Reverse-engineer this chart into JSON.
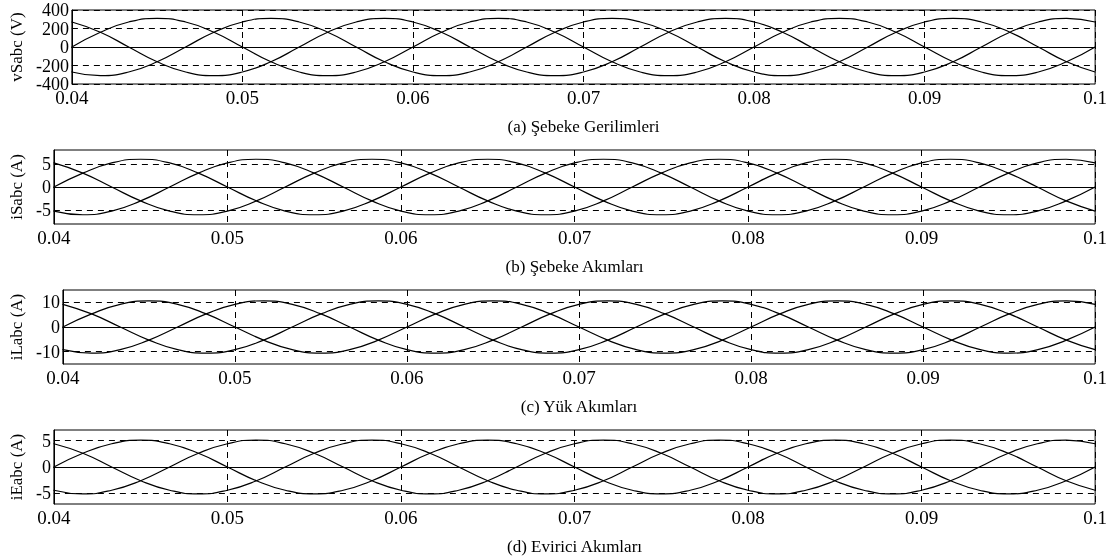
{
  "chart_data": [
    {
      "type": "line",
      "xlabel": "(a) Şebeke Gerilimleri",
      "ylabel": "vSabc (V)",
      "xlim": [
        0.04,
        0.1
      ],
      "xticks": [
        0.04,
        0.05,
        0.06,
        0.07,
        0.08,
        0.09,
        0.1
      ],
      "ylim": [
        -400,
        400
      ],
      "yticks": [
        -400,
        -200,
        0,
        200,
        400
      ],
      "grid": true,
      "marker": "none",
      "x": [
        0.04,
        0.04167,
        0.04333,
        0.045,
        0.04667,
        0.04833,
        0.05,
        0.05167,
        0.05333,
        0.055,
        0.05667,
        0.05833,
        0.06,
        0.06167,
        0.06333,
        0.065,
        0.06667,
        0.06833,
        0.07,
        0.07167,
        0.07333,
        0.075,
        0.07667,
        0.07833,
        0.08,
        0.08167,
        0.08333,
        0.085,
        0.08667,
        0.08833,
        0.09,
        0.09167,
        0.09333,
        0.095,
        0.09667,
        0.09833,
        0.1
      ],
      "series": [
        {
          "color": "#000000",
          "values": [
            0,
            160,
            270,
            310,
            270,
            160,
            0,
            -160,
            -270,
            -310,
            -270,
            -160,
            0,
            160,
            270,
            310,
            270,
            160,
            0,
            -160,
            -270,
            -310,
            -270,
            -160,
            0,
            160,
            270,
            310,
            270,
            160,
            0,
            -160,
            -270,
            -310,
            -270,
            -160,
            0
          ]
        },
        {
          "color": "#000000",
          "values": [
            -270,
            -310,
            -270,
            -160,
            0,
            160,
            270,
            310,
            270,
            160,
            0,
            -160,
            -270,
            -310,
            -270,
            -160,
            0,
            160,
            270,
            310,
            270,
            160,
            0,
            -160,
            -270,
            -310,
            -270,
            -160,
            0,
            160,
            270,
            310,
            270,
            160,
            0,
            -160,
            -270
          ]
        },
        {
          "color": "#000000",
          "values": [
            270,
            160,
            0,
            -160,
            -270,
            -310,
            -270,
            -160,
            0,
            160,
            270,
            310,
            270,
            160,
            0,
            -160,
            -270,
            -310,
            -270,
            -160,
            0,
            160,
            270,
            310,
            270,
            160,
            0,
            -160,
            -270,
            -310,
            -270,
            -160,
            0,
            160,
            270,
            310,
            270
          ]
        }
      ]
    },
    {
      "type": "line",
      "xlabel": "(b) Şebeke Akımları",
      "ylabel": "iSabc (A)",
      "xlim": [
        0.04,
        0.1
      ],
      "xticks": [
        0.04,
        0.05,
        0.06,
        0.07,
        0.08,
        0.09,
        0.1
      ],
      "ylim": [
        -8,
        8
      ],
      "yticks": [
        -5,
        0,
        5
      ],
      "grid": true,
      "marker": "none",
      "x": [
        0.04,
        0.04167,
        0.04333,
        0.045,
        0.04667,
        0.04833,
        0.05,
        0.05167,
        0.05333,
        0.055,
        0.05667,
        0.05833,
        0.06,
        0.06167,
        0.06333,
        0.065,
        0.06667,
        0.06833,
        0.07,
        0.07167,
        0.07333,
        0.075,
        0.07667,
        0.07833,
        0.08,
        0.08167,
        0.08333,
        0.085,
        0.08667,
        0.08833,
        0.09,
        0.09167,
        0.09333,
        0.095,
        0.09667,
        0.09833,
        0.1
      ],
      "series": [
        {
          "color": "#000000",
          "values": [
            0,
            3,
            5.2,
            6,
            5.2,
            3,
            0,
            -3,
            -5.2,
            -6,
            -5.2,
            -3,
            0,
            3,
            5.2,
            6,
            5.2,
            3,
            0,
            -3,
            -5.2,
            -6,
            -5.2,
            -3,
            0,
            3,
            5.2,
            6,
            5.2,
            3,
            0,
            -3,
            -5.2,
            -6,
            -5.2,
            -3,
            0
          ]
        },
        {
          "color": "#000000",
          "values": [
            -5.2,
            -6,
            -5.2,
            -3,
            0,
            3,
            5.2,
            6,
            5.2,
            3,
            0,
            -3,
            -5.2,
            -6,
            -5.2,
            -3,
            0,
            3,
            5.2,
            6,
            5.2,
            3,
            0,
            -3,
            -5.2,
            -6,
            -5.2,
            -3,
            0,
            3,
            5.2,
            6,
            5.2,
            3,
            0,
            -3,
            -5.2
          ]
        },
        {
          "color": "#000000",
          "values": [
            5.2,
            3,
            0,
            -3,
            -5.2,
            -6,
            -5.2,
            -3,
            0,
            3,
            5.2,
            6,
            5.2,
            3,
            0,
            -3,
            -5.2,
            -6,
            -5.2,
            -3,
            0,
            3,
            5.2,
            6,
            5.2,
            3,
            0,
            -3,
            -5.2,
            -6,
            -5.2,
            -3,
            0,
            3,
            5.2,
            6,
            5.2
          ]
        }
      ]
    },
    {
      "type": "line",
      "xlabel": "(c) Yük Akımları",
      "ylabel": "iLabc (A)",
      "xlim": [
        0.04,
        0.1
      ],
      "xticks": [
        0.04,
        0.05,
        0.06,
        0.07,
        0.08,
        0.09,
        0.1
      ],
      "ylim": [
        -15,
        15
      ],
      "yticks": [
        -10,
        0,
        10
      ],
      "grid": true,
      "marker": "none",
      "x": [
        0.04,
        0.04167,
        0.04333,
        0.045,
        0.04667,
        0.04833,
        0.05,
        0.05167,
        0.05333,
        0.055,
        0.05667,
        0.05833,
        0.06,
        0.06167,
        0.06333,
        0.065,
        0.06667,
        0.06833,
        0.07,
        0.07167,
        0.07333,
        0.075,
        0.07667,
        0.07833,
        0.08,
        0.08167,
        0.08333,
        0.085,
        0.08667,
        0.08833,
        0.09,
        0.09167,
        0.09333,
        0.095,
        0.09667,
        0.09833,
        0.1
      ],
      "series": [
        {
          "color": "#000000",
          "values": [
            0,
            5.3,
            9.2,
            10.6,
            9.2,
            5.3,
            0,
            -5.3,
            -9.2,
            -10.6,
            -9.2,
            -5.3,
            0,
            5.3,
            9.2,
            10.6,
            9.2,
            5.3,
            0,
            -5.3,
            -9.2,
            -10.6,
            -9.2,
            -5.3,
            0,
            5.3,
            9.2,
            10.6,
            9.2,
            5.3,
            0,
            -5.3,
            -9.2,
            -10.6,
            -9.2,
            -5.3,
            0
          ]
        },
        {
          "color": "#000000",
          "values": [
            -9.2,
            -10.6,
            -9.2,
            -5.3,
            0,
            5.3,
            9.2,
            10.6,
            9.2,
            5.3,
            0,
            -5.3,
            -9.2,
            -10.6,
            -9.2,
            -5.3,
            0,
            5.3,
            9.2,
            10.6,
            9.2,
            5.3,
            0,
            -5.3,
            -9.2,
            -10.6,
            -9.2,
            -5.3,
            0,
            5.3,
            9.2,
            10.6,
            9.2,
            5.3,
            0,
            -5.3,
            -9.2
          ]
        },
        {
          "color": "#000000",
          "values": [
            9.2,
            5.3,
            0,
            -5.3,
            -9.2,
            -10.6,
            -9.2,
            -5.3,
            0,
            5.3,
            9.2,
            10.6,
            9.2,
            5.3,
            0,
            -5.3,
            -9.2,
            -10.6,
            -9.2,
            -5.3,
            0,
            5.3,
            9.2,
            10.6,
            9.2,
            5.3,
            0,
            -5.3,
            -9.2,
            -10.6,
            -9.2,
            -5.3,
            0,
            5.3,
            9.2,
            10.6,
            9.2
          ]
        }
      ]
    },
    {
      "type": "line",
      "xlabel": "(d) Evirici Akımları",
      "ylabel": "iEabc (A)",
      "xlim": [
        0.04,
        0.1
      ],
      "xticks": [
        0.04,
        0.05,
        0.06,
        0.07,
        0.08,
        0.09,
        0.1
      ],
      "ylim": [
        -7,
        7
      ],
      "yticks": [
        -5,
        0,
        5
      ],
      "grid": true,
      "marker": "none",
      "x": [
        0.04,
        0.04167,
        0.04333,
        0.045,
        0.04667,
        0.04833,
        0.05,
        0.05167,
        0.05333,
        0.055,
        0.05667,
        0.05833,
        0.06,
        0.06167,
        0.06333,
        0.065,
        0.06667,
        0.06833,
        0.07,
        0.07167,
        0.07333,
        0.075,
        0.07667,
        0.07833,
        0.08,
        0.08167,
        0.08333,
        0.085,
        0.08667,
        0.08833,
        0.09,
        0.09167,
        0.09333,
        0.095,
        0.09667,
        0.09833,
        0.1
      ],
      "series": [
        {
          "color": "#000000",
          "values": [
            0,
            2.6,
            4.4,
            5.1,
            4.4,
            2.6,
            0,
            -2.6,
            -4.4,
            -5.1,
            -4.4,
            -2.6,
            0,
            2.6,
            4.4,
            5.1,
            4.4,
            2.6,
            0,
            -2.6,
            -4.4,
            -5.1,
            -4.4,
            -2.6,
            0,
            2.6,
            4.4,
            5.1,
            4.4,
            2.6,
            0,
            -2.6,
            -4.4,
            -5.1,
            -4.4,
            -2.6,
            0
          ]
        },
        {
          "color": "#000000",
          "values": [
            -4.4,
            -5.1,
            -4.4,
            -2.6,
            0,
            2.6,
            4.4,
            5.1,
            4.4,
            2.6,
            0,
            -2.6,
            -4.4,
            -5.1,
            -4.4,
            -2.6,
            0,
            2.6,
            4.4,
            5.1,
            4.4,
            2.6,
            0,
            -2.6,
            -4.4,
            -5.1,
            -4.4,
            -2.6,
            0,
            2.6,
            4.4,
            5.1,
            4.4,
            2.6,
            0,
            -2.6,
            -4.4
          ]
        },
        {
          "color": "#000000",
          "values": [
            4.4,
            2.6,
            0,
            -2.6,
            -4.4,
            -5.1,
            -4.4,
            -2.6,
            0,
            2.6,
            4.4,
            5.1,
            4.4,
            2.6,
            0,
            -2.6,
            -4.4,
            -5.1,
            -4.4,
            -2.6,
            0,
            2.6,
            4.4,
            5.1,
            4.4,
            2.6,
            0,
            -2.6,
            -4.4,
            -5.1,
            -4.4,
            -2.6,
            0,
            2.6,
            4.4,
            5.1,
            4.4
          ]
        }
      ]
    }
  ]
}
